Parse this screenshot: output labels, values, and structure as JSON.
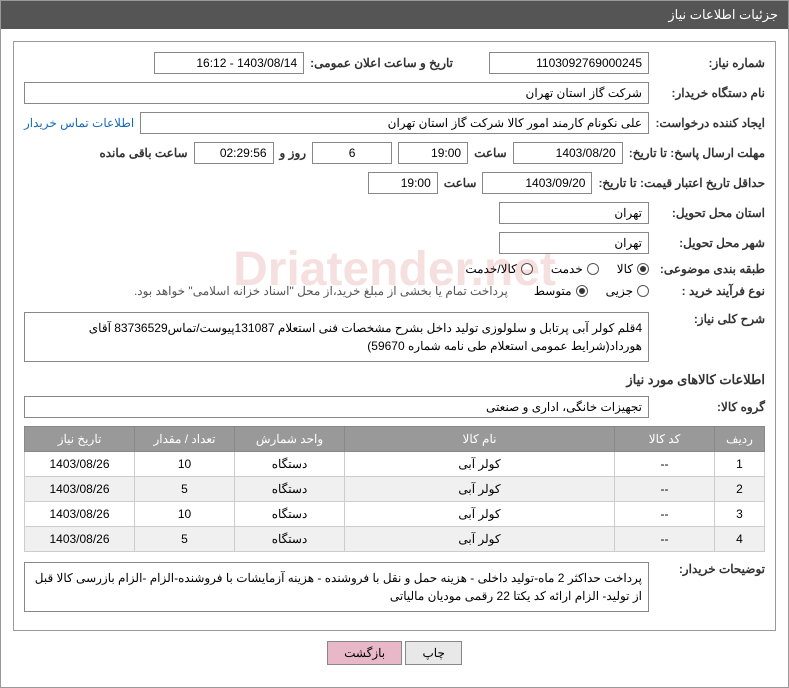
{
  "header": {
    "title": "جزئیات اطلاعات نیاز"
  },
  "fields": {
    "need_number_label": "شماره نیاز:",
    "need_number": "1103092769000245",
    "announce_label": "تاریخ و ساعت اعلان عمومی:",
    "announce_value": "1403/08/14 - 16:12",
    "buyer_org_label": "نام دستگاه خریدار:",
    "buyer_org": "شرکت گاز استان تهران",
    "requester_label": "ایجاد کننده درخواست:",
    "requester": "علی نکونام کارمند امور کالا شرکت گاز استان تهران",
    "contact_link": "اطلاعات تماس خریدار",
    "deadline_label": "مهلت ارسال پاسخ: تا تاریخ:",
    "deadline_date": "1403/08/20",
    "time_label": "ساعت",
    "deadline_time": "19:00",
    "days_remaining": "6",
    "days_text": "روز و",
    "time_remaining": "02:29:56",
    "remaining_text": "ساعت باقی مانده",
    "validity_label": "حداقل تاریخ اعتبار قیمت: تا تاریخ:",
    "validity_date": "1403/09/20",
    "validity_time": "19:00",
    "province_label": "استان محل تحویل:",
    "province": "تهران",
    "city_label": "شهر محل تحویل:",
    "city": "تهران",
    "category_label": "طبقه بندی موضوعی:",
    "cat_goods": "کالا",
    "cat_service": "خدمت",
    "cat_both": "کالا/خدمت",
    "process_label": "نوع فرآیند خرید :",
    "proc_minor": "جزیی",
    "proc_medium": "متوسط",
    "process_note": "پرداخت تمام یا بخشی از مبلغ خرید،از محل \"اسناد خزانه اسلامی\" خواهد بود.",
    "desc_label": "شرح کلی نیاز:",
    "desc_text": "4قلم کولر آبی پرتابل و سلولوزی تولید داخل بشرح مشخصات فنی استعلام 131087پیوست/تماس83736529 آقای هورداد(شرایط عمومی استعلام طی نامه شماره 59670)",
    "items_title": "اطلاعات کالاهای مورد نیاز",
    "group_label": "گروه کالا:",
    "group_value": "تجهیزات خانگی، اداری و صنعتی",
    "buyer_notes_label": "توضیحات خریدار:",
    "buyer_notes": "پرداخت حداکثر 2 ماه-تولید داخلی - هزینه حمل و نقل با فروشنده - هزینه آزمایشات با فروشنده-الزام  -الزام بازرسی کالا قبل از تولید- الزام ارائه کد یکتا 22 رقمی مودیان مالیاتی"
  },
  "table": {
    "headers": {
      "row": "ردیف",
      "code": "کد کالا",
      "name": "نام کالا",
      "unit": "واحد شمارش",
      "qty": "تعداد / مقدار",
      "date": "تاریخ نیاز"
    },
    "rows": [
      {
        "n": "1",
        "code": "--",
        "name": "کولر آبی",
        "unit": "دستگاه",
        "qty": "10",
        "date": "1403/08/26"
      },
      {
        "n": "2",
        "code": "--",
        "name": "کولر آبی",
        "unit": "دستگاه",
        "qty": "5",
        "date": "1403/08/26"
      },
      {
        "n": "3",
        "code": "--",
        "name": "کولر آبی",
        "unit": "دستگاه",
        "qty": "10",
        "date": "1403/08/26"
      },
      {
        "n": "4",
        "code": "--",
        "name": "کولر آبی",
        "unit": "دستگاه",
        "qty": "5",
        "date": "1403/08/26"
      }
    ]
  },
  "buttons": {
    "print": "چاپ",
    "back": "بازگشت"
  },
  "watermark": "Driatender.net"
}
